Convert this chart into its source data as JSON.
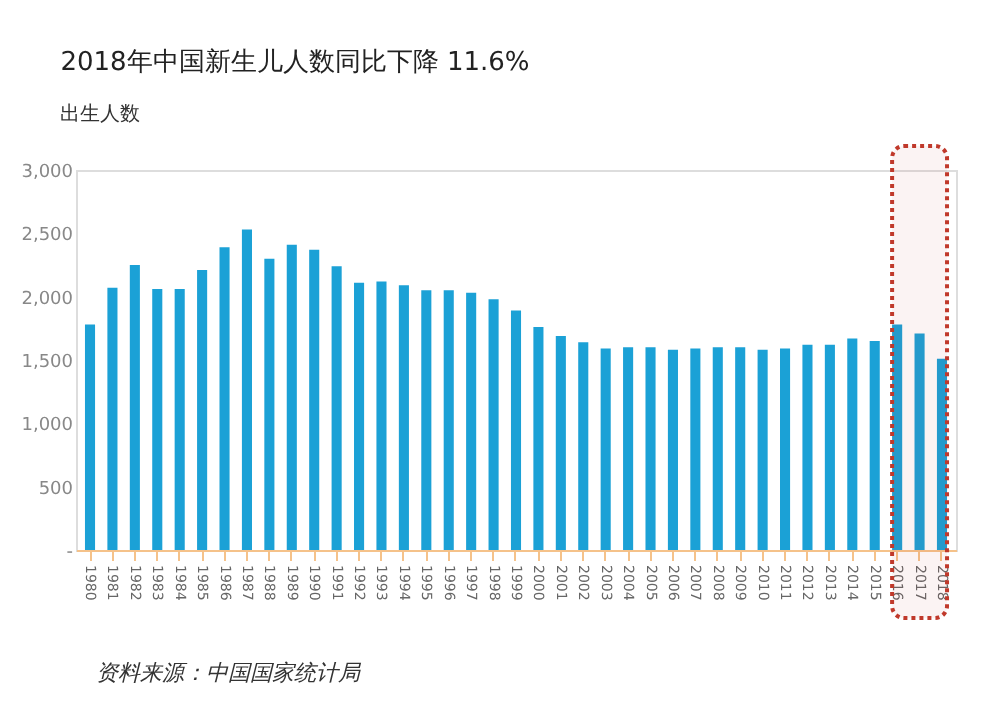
{
  "chart_data": {
    "type": "bar",
    "title": "2018年中国新生儿人数同比下降 11.6%",
    "subtitle": "出生人数",
    "categories": [
      "1980",
      "1981",
      "1982",
      "1983",
      "1984",
      "1985",
      "1986",
      "1987",
      "1988",
      "1989",
      "1990",
      "1991",
      "1992",
      "1993",
      "1994",
      "1995",
      "1996",
      "1997",
      "1998",
      "1999",
      "2000",
      "2001",
      "2002",
      "2003",
      "2004",
      "2005",
      "2006",
      "2007",
      "2008",
      "2009",
      "2010",
      "2011",
      "2012",
      "2013",
      "2014",
      "2015",
      "2016",
      "2017",
      "2018"
    ],
    "values": [
      1780,
      2070,
      2250,
      2060,
      2060,
      2210,
      2390,
      2530,
      2300,
      2410,
      2370,
      2240,
      2110,
      2120,
      2090,
      2050,
      2050,
      2030,
      1980,
      1890,
      1760,
      1690,
      1640,
      1590,
      1600,
      1600,
      1580,
      1590,
      1600,
      1600,
      1580,
      1590,
      1620,
      1620,
      1670,
      1650,
      1780,
      1710,
      1510
    ],
    "color": "#1ba1d6",
    "ylim": [
      0,
      3000
    ],
    "yticks": [
      {
        "value": 0,
        "label": "-"
      },
      {
        "value": 500,
        "label": "500"
      },
      {
        "value": 1000,
        "label": "1,000"
      },
      {
        "value": 1500,
        "label": "1,500"
      },
      {
        "value": 2000,
        "label": "2,000"
      },
      {
        "value": 2500,
        "label": "2,500"
      },
      {
        "value": 3000,
        "label": "3,000"
      }
    ],
    "grid": false,
    "bands": [
      {
        "axis": "x",
        "from": "2016",
        "to": "2018",
        "color": "#c0392b"
      }
    ],
    "annotations": [
      "资料来源：中国国家统计局"
    ]
  }
}
